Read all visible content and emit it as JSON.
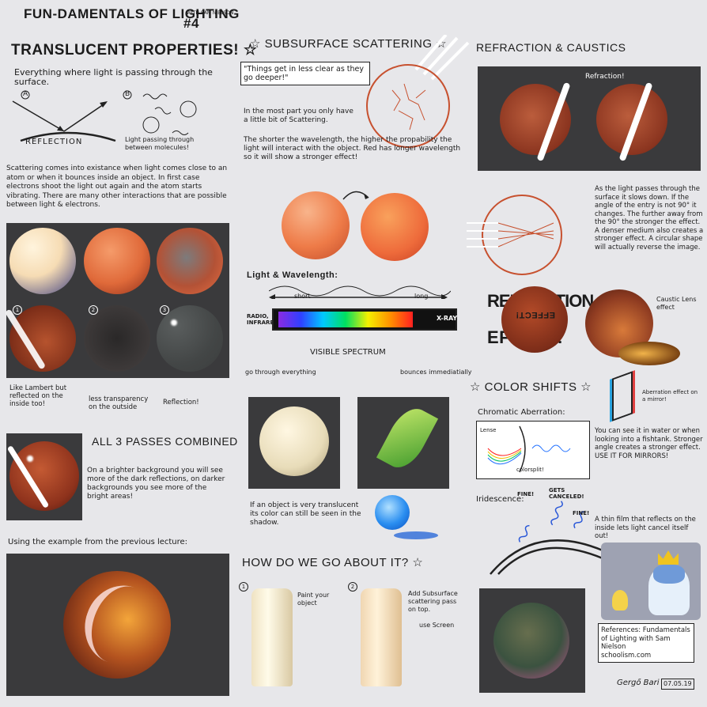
{
  "header": {
    "title": "FUN-DAMENTALS OF LIGHTING",
    "with": "WITH SAM NIELSON",
    "number": "#4"
  },
  "translucent": {
    "heading": "TRANSLUCENT PROPERTIES!",
    "intro": "Everything where light is passing through the surface.",
    "label_a": "A",
    "label_b": "B",
    "reflection": "REFLECTION",
    "passing": "Light passing through between molecules!",
    "scatter_text": "Scattering comes into existance when light comes close to an atom or when it bounces inside an object. In first case electrons shoot the light out again and the atom starts vibrating. There are many other interactions that are possible between light & electrons.",
    "row_numbers": [
      "1",
      "2",
      "3"
    ],
    "cap1": "Like Lambert but reflected on the inside too!",
    "cap2": "less transparency on the outside",
    "cap3": "Reflection!",
    "combined_heading": "ALL 3 PASSES COMBINED",
    "combined_text": "On a brighter background you will see more of the dark reflections, on darker backgrounds you see more of the bright areas!",
    "example_text": "Using the example from the previous lecture:"
  },
  "subsurface": {
    "heading": "SUBSURFACE SCATTERING",
    "quote": "\"Things get in less clear as they go deeper!\"",
    "p1": "In the most part you only have a little bit of Scattering.",
    "p2": "The shorter the wavelength, the higher the propability the light will interact with the object. Red has longer wavelength so it will show a stronger effect!",
    "wavelength_title": "Light & Wavelength:",
    "short": "short",
    "long": "long",
    "radio": "RADIO, INFRARED",
    "xray": "X-RAY",
    "visible": "VISIBLE SPECTRUM",
    "left_note": "go through everything",
    "right_note": "bounces immediatially",
    "translucent_note": "If an object is very translucent its color can still be seen in the shadow.",
    "how_heading": "HOW DO WE GO ABOUT IT?",
    "step1_num": "1",
    "step1": "Paint your object",
    "step2_num": "2",
    "step2": "Add Subsurface scattering pass on top.",
    "step2b": "use Screen"
  },
  "refraction": {
    "heading": "REFRACTION & CAUSTICS",
    "label": "Refraction!",
    "text": "As the light passes through the surface it slows down. If the angle of the entry is not 90° it changes. The further away from the 90° the stronger the effect. A denser medium also creates a stronger effect. A circular shape will actually reverse the image.",
    "big_word1": "REFRACTION",
    "big_word2": "EFFECT!",
    "mirror_word": "EFFECT!",
    "caustic": "Caustic Lens effect"
  },
  "color_shifts": {
    "heading": "COLOR SHIFTS",
    "chromatic": "Chromatic Aberration:",
    "lens": "Lense",
    "colorsplit": "colorsplit!",
    "aberration_note": "Aberration effect on a mirror!",
    "see_text": "You can see it in water or when looking into a fishtank. Stronger angle creates a stronger effect. USE IT FOR MIRRORS!",
    "iridescence": "Iridescence:",
    "fine": "FINE!",
    "gets_canceled": "GETS CANCELED!",
    "fine2": "FINE!",
    "film_text": "A thin film that reflects on the inside lets light cancel itself out!",
    "references": "References: Fundamentals of Lighting with Sam Nielson",
    "site": "schoolism.com",
    "signature": "Gergő Bari",
    "date": "07.05.19"
  },
  "colors": {
    "bg": "#e7e7ea",
    "panel": "#3a3a3c",
    "sphere_orange": "#e8743f",
    "sphere_dark": "#7a2e1a",
    "accent_red": "#c7512f"
  }
}
